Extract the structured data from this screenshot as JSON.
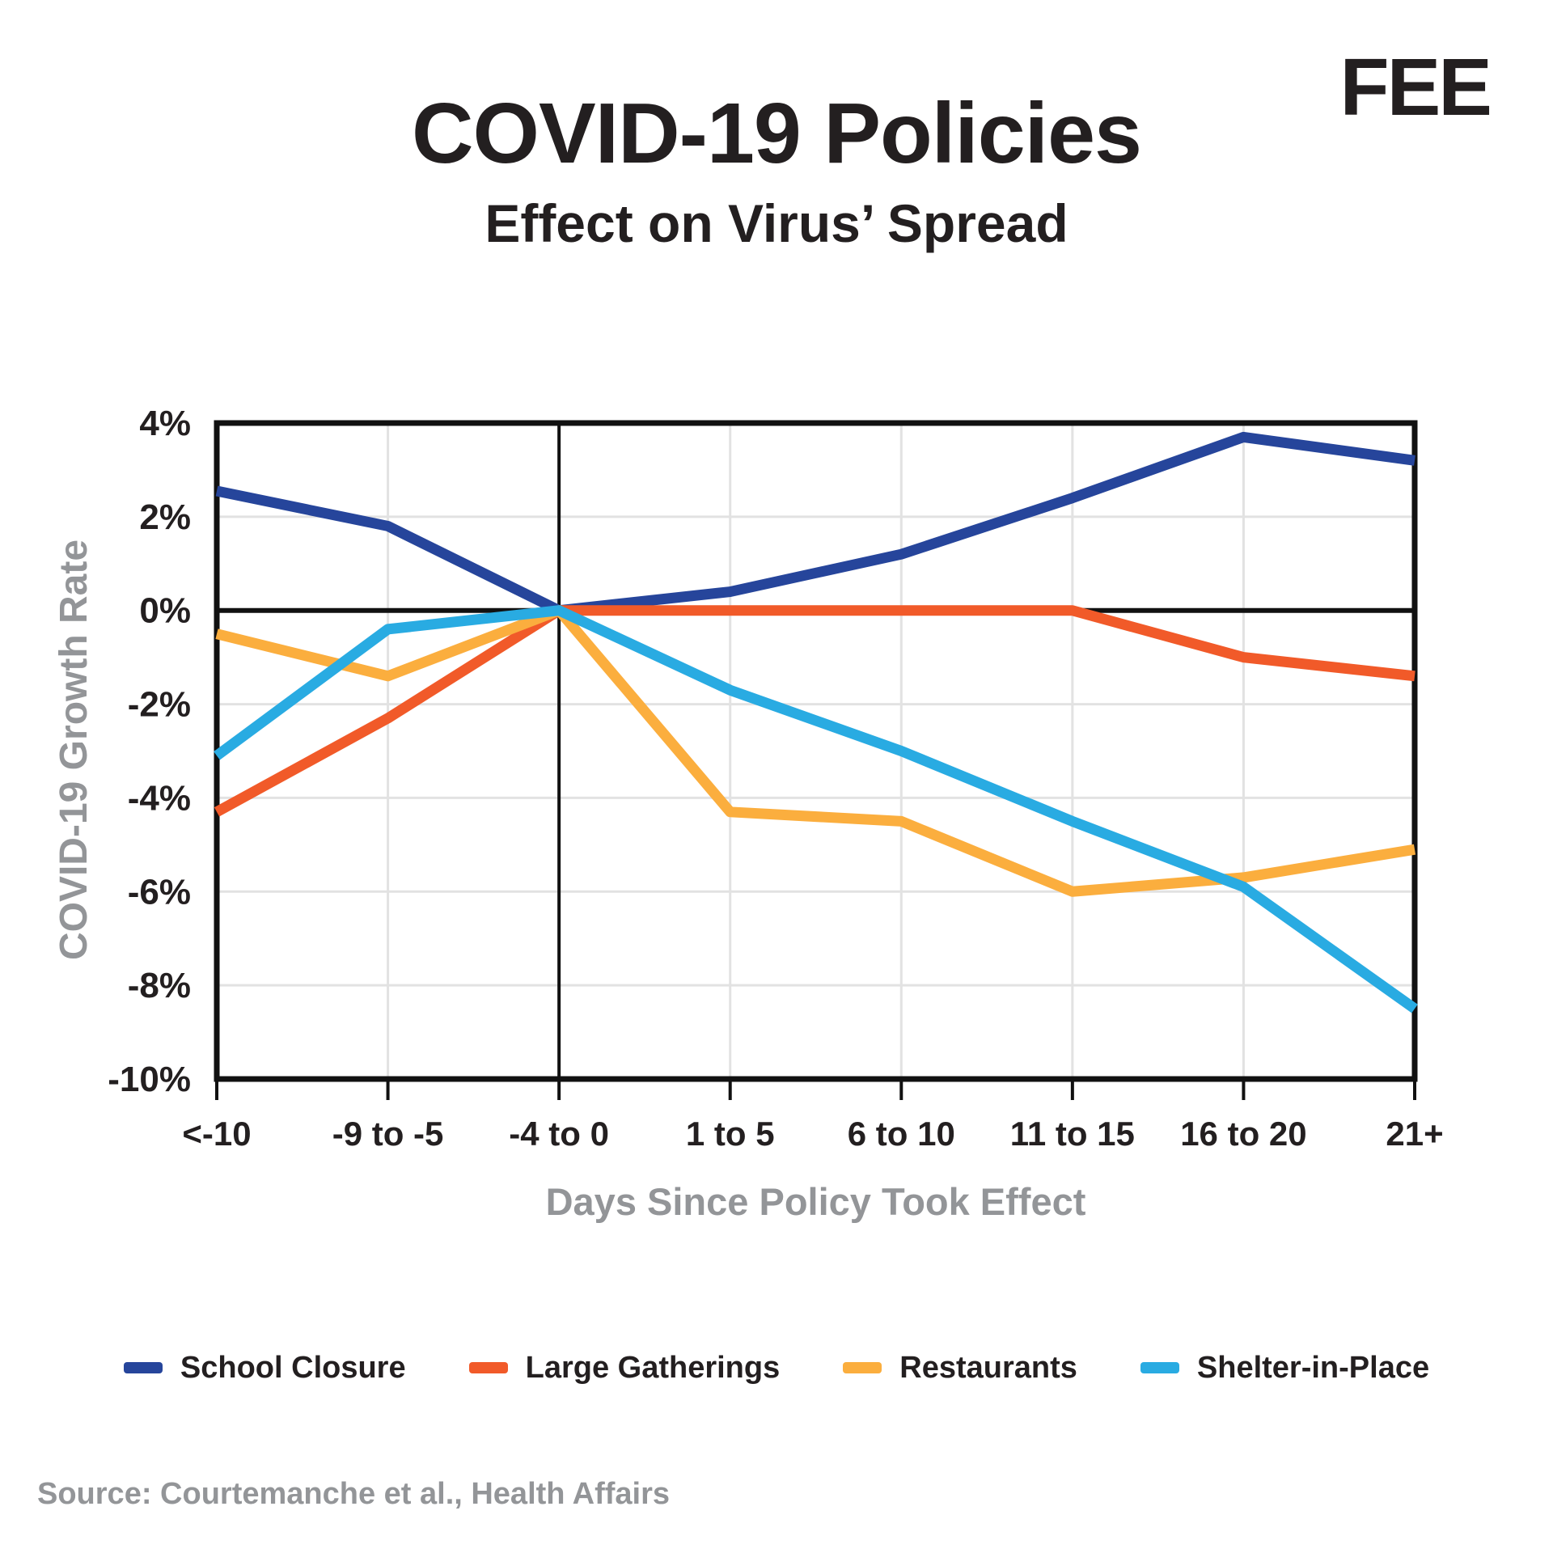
{
  "header": {
    "logo": "FEE",
    "title": "COVID-19 Policies",
    "subtitle": "Effect on Virus’ Spread"
  },
  "source": "Source: Courtemanche et al., Health Affairs",
  "colors": {
    "text_dark": "#231f20",
    "label_gray": "#939598",
    "grid_gray": "#e2e2e2",
    "axis_black": "#111111"
  },
  "chart_data": {
    "type": "line",
    "title": "COVID-19 Policies",
    "subtitle": "Effect on Virus’ Spread",
    "xlabel": "Days Since Policy Took Effect",
    "ylabel": "COVID-19 Growth Rate",
    "categories": [
      "<-10",
      "-9 to -5",
      "-4 to 0",
      "1 to 5",
      "6 to 10",
      "11 to 15",
      "16 to 20",
      "21+"
    ],
    "ylim": [
      -10,
      4
    ],
    "yticks": [
      4,
      2,
      0,
      -2,
      -4,
      -6,
      -8,
      -10
    ],
    "ytick_labels": [
      "4%",
      "2%",
      "0%",
      "-2%",
      "-4%",
      "-6%",
      "-8%",
      "-10%"
    ],
    "grid": true,
    "zero_line": true,
    "event_line_category": "-4 to 0",
    "legend_position": "bottom",
    "series": [
      {
        "name": "School Closure",
        "color": "#26459B",
        "values": [
          2.55,
          1.8,
          0,
          0.4,
          1.2,
          2.4,
          3.7,
          3.2
        ]
      },
      {
        "name": "Large Gatherings",
        "color": "#F15A29",
        "values": [
          -4.3,
          -2.3,
          0,
          0,
          0,
          0,
          -1.0,
          -1.4
        ]
      },
      {
        "name": "Restaurants",
        "color": "#FBAE3E",
        "values": [
          -0.5,
          -1.4,
          0,
          -4.3,
          -4.5,
          -6.0,
          -5.7,
          -5.1
        ]
      },
      {
        "name": "Shelter-in-Place",
        "color": "#29ABE2",
        "values": [
          -3.1,
          -0.4,
          0,
          -1.7,
          -3.0,
          -4.5,
          -5.9,
          -8.5
        ]
      }
    ]
  }
}
